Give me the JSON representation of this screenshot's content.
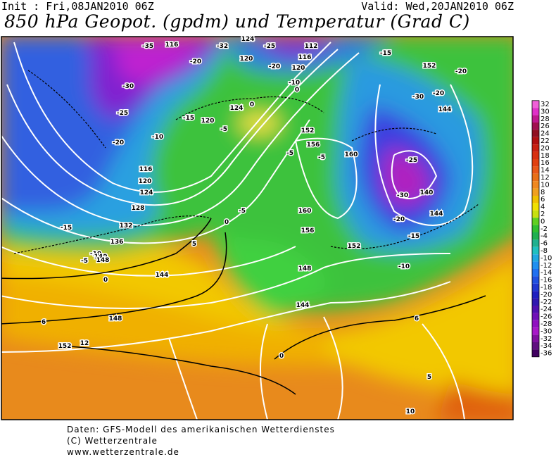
{
  "header": {
    "init": "Init : Fri,08JAN2010 06Z",
    "valid": "Valid: Wed,20JAN2010 06Z",
    "title": "850 hPa Geopot. (gpdm) und Temperatur (Grad C)"
  },
  "contour_labels": [
    "-35",
    "116",
    "-32",
    "-25",
    "124",
    "112",
    "-15",
    "116",
    "-20",
    "120",
    "-20",
    "120",
    "152",
    "-20",
    "-10",
    "0",
    "-30",
    "-30",
    "-20",
    "-25",
    "144",
    "124",
    "0",
    "-15",
    "120",
    "-5",
    "152",
    "-20",
    "-10",
    "156",
    "-5",
    "160",
    "-5",
    "116",
    "-25",
    "120",
    "-30",
    "140",
    "124",
    "128",
    "-5",
    "160",
    "144",
    "-20",
    "132",
    "0",
    "156",
    "-15",
    "-15",
    "136",
    "5",
    "152",
    "-10",
    "140",
    "-10",
    "148",
    "148",
    "-5",
    "0",
    "144",
    "144",
    "6",
    "148",
    "0",
    "152",
    "12",
    "6",
    "5",
    "10"
  ],
  "colorbar": {
    "labels": [
      32,
      30,
      28,
      26,
      24,
      22,
      20,
      18,
      16,
      14,
      12,
      10,
      8,
      6,
      4,
      2,
      0,
      -2,
      -4,
      -6,
      -8,
      -10,
      -12,
      -14,
      -16,
      -18,
      -20,
      -22,
      -24,
      -26,
      -28,
      -30,
      -32,
      -34,
      -36
    ],
    "colors": [
      "#f060d8",
      "#e030c8",
      "#c01890",
      "#a01050",
      "#901020",
      "#b01010",
      "#c82010",
      "#d83010",
      "#e04010",
      "#e85818",
      "#e87018",
      "#f08820",
      "#f0a020",
      "#f0c000",
      "#f0e000",
      "#c8e010",
      "#60d020",
      "#30c030",
      "#20b050",
      "#20b090",
      "#20c0c0",
      "#20a8e0",
      "#2090f0",
      "#2070f0",
      "#2050e0",
      "#2038d0",
      "#2020c0",
      "#3018b0",
      "#5010b0",
      "#7010b8",
      "#9010c0",
      "#a818c8",
      "#8010a0",
      "#601080",
      "#400060"
    ]
  },
  "footer": [
    "Daten: GFS-Modell des amerikanischen Wetterdienstes",
    "(C) Wetterzentrale",
    "www.wetterzentrale.de"
  ]
}
